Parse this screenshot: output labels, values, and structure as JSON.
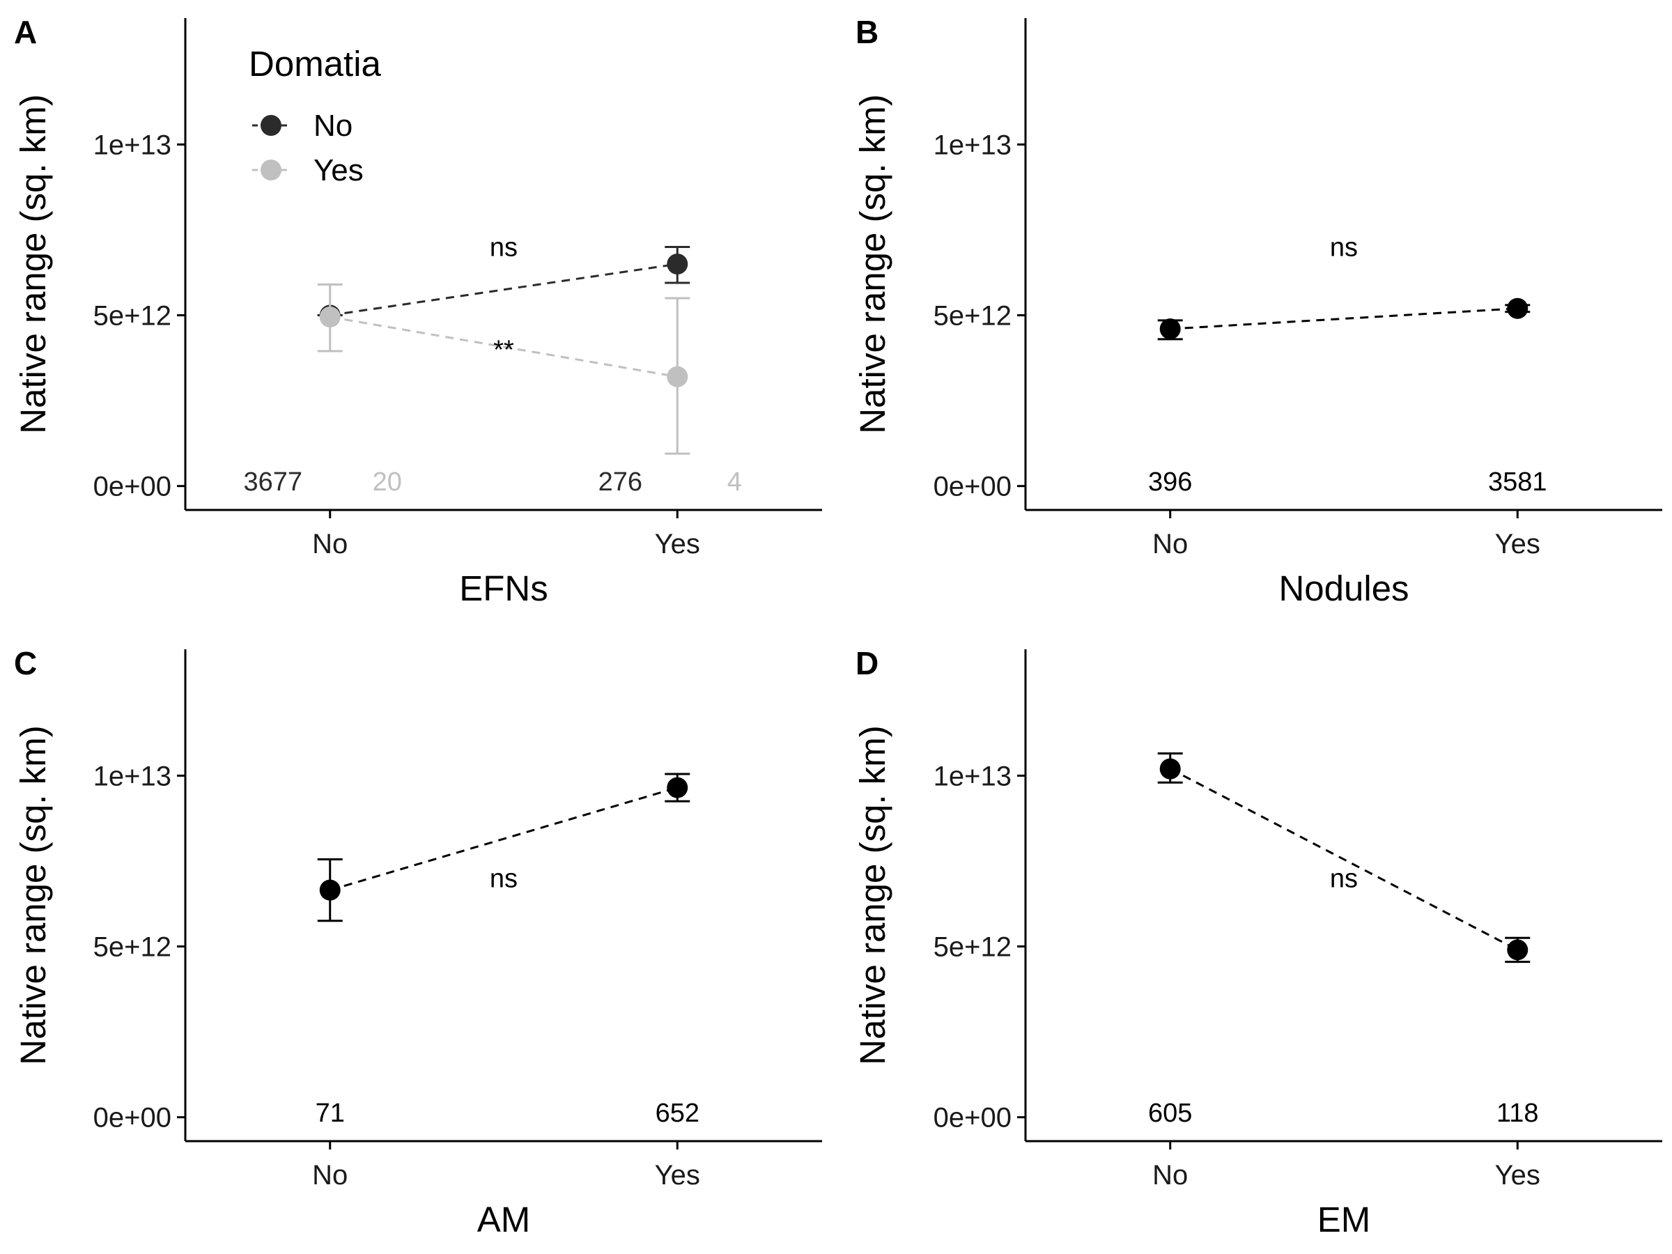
{
  "colors": {
    "black": "#000000",
    "dark": "#2b2b2b",
    "grey": "#c0c0c0",
    "axis": "#000000"
  },
  "legend": {
    "title": "Domatia",
    "entries": [
      {
        "label": "No",
        "color": "#2b2b2b"
      },
      {
        "label": "Yes",
        "color": "#c0c0c0"
      }
    ]
  },
  "chart_data": [
    {
      "type": "scatter",
      "panel": "A",
      "xlabel": "EFNs",
      "ylabel": "Native range (sq. km)",
      "categories": [
        "No",
        "Yes"
      ],
      "ylim": [
        -700000000000.0,
        13700000000000.0
      ],
      "yticks": [
        0,
        5000000000000.0,
        10000000000000.0
      ],
      "yticklabels": [
        "0e+00",
        "5e+12",
        "1e+13"
      ],
      "legend": "top-left",
      "series": [
        {
          "name": "No",
          "color": "#2b2b2b",
          "points": [
            {
              "x": "No",
              "y": 5000000000000.0,
              "lo": 5000000000000.0,
              "hi": 5000000000000.0
            },
            {
              "x": "Yes",
              "y": 6500000000000.0,
              "lo": 5950000000000.0,
              "hi": 7000000000000.0
            }
          ],
          "counts": [
            "3677",
            "276"
          ]
        },
        {
          "name": "Yes",
          "color": "#c0c0c0",
          "points": [
            {
              "x": "No",
              "y": 4950000000000.0,
              "lo": 3950000000000.0,
              "hi": 5900000000000.0
            },
            {
              "x": "Yes",
              "y": 3200000000000.0,
              "lo": 950000000000.0,
              "hi": 5500000000000.0
            }
          ],
          "counts": [
            "20",
            "4"
          ]
        }
      ],
      "annotations": [
        {
          "text": "ns",
          "x": 0.5,
          "y": 7000000000000.0
        },
        {
          "text": "**",
          "x": 0.5,
          "y": 4000000000000.0
        }
      ]
    },
    {
      "type": "scatter",
      "panel": "B",
      "xlabel": "Nodules",
      "ylabel": "Native range (sq. km)",
      "categories": [
        "No",
        "Yes"
      ],
      "ylim": [
        -700000000000.0,
        13700000000000.0
      ],
      "yticks": [
        0,
        5000000000000.0,
        10000000000000.0
      ],
      "yticklabels": [
        "0e+00",
        "5e+12",
        "1e+13"
      ],
      "series": [
        {
          "color": "#000000",
          "points": [
            {
              "x": "No",
              "y": 4600000000000.0,
              "lo": 4300000000000.0,
              "hi": 4850000000000.0
            },
            {
              "x": "Yes",
              "y": 5200000000000.0,
              "lo": 5100000000000.0,
              "hi": 5300000000000.0
            }
          ],
          "counts": [
            "396",
            "3581"
          ]
        }
      ],
      "annotations": [
        {
          "text": "ns",
          "x": 0.5,
          "y": 7000000000000.0
        }
      ]
    },
    {
      "type": "scatter",
      "panel": "C",
      "xlabel": "AM",
      "ylabel": "Native range (sq. km)",
      "categories": [
        "No",
        "Yes"
      ],
      "ylim": [
        -700000000000.0,
        13700000000000.0
      ],
      "yticks": [
        0,
        5000000000000.0,
        10000000000000.0
      ],
      "yticklabels": [
        "0e+00",
        "5e+12",
        "1e+13"
      ],
      "series": [
        {
          "color": "#000000",
          "points": [
            {
              "x": "No",
              "y": 6650000000000.0,
              "lo": 5750000000000.0,
              "hi": 7550000000000.0
            },
            {
              "x": "Yes",
              "y": 9650000000000.0,
              "lo": 9250000000000.0,
              "hi": 10050000000000.0
            }
          ],
          "counts": [
            "71",
            "652"
          ]
        }
      ],
      "annotations": [
        {
          "text": "ns",
          "x": 0.5,
          "y": 7000000000000.0
        }
      ]
    },
    {
      "type": "scatter",
      "panel": "D",
      "xlabel": "EM",
      "ylabel": "Native range (sq. km)",
      "categories": [
        "No",
        "Yes"
      ],
      "ylim": [
        -700000000000.0,
        13700000000000.0
      ],
      "yticks": [
        0,
        5000000000000.0,
        10000000000000.0
      ],
      "yticklabels": [
        "0e+00",
        "5e+12",
        "1e+13"
      ],
      "series": [
        {
          "color": "#000000",
          "points": [
            {
              "x": "No",
              "y": 10200000000000.0,
              "lo": 9800000000000.0,
              "hi": 10650000000000.0
            },
            {
              "x": "Yes",
              "y": 4900000000000.0,
              "lo": 4550000000000.0,
              "hi": 5250000000000.0
            }
          ],
          "counts": [
            "605",
            "118"
          ]
        }
      ],
      "annotations": [
        {
          "text": "ns",
          "x": 0.5,
          "y": 7000000000000.0
        }
      ]
    }
  ]
}
